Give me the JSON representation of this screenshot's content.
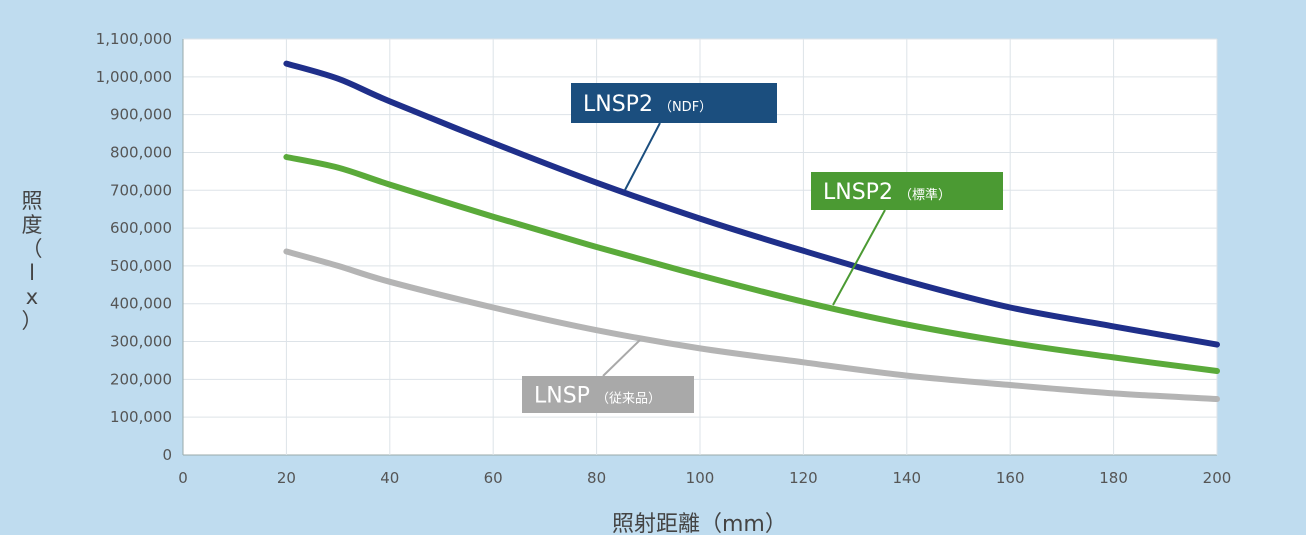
{
  "chart_data": {
    "type": "line",
    "xlabel": "照射距離（mm）",
    "ylabel": "照度（lx）",
    "xlim": [
      0,
      200
    ],
    "ylim": [
      0,
      1100000
    ],
    "x_ticks": [
      "0",
      "20",
      "40",
      "60",
      "80",
      "100",
      "120",
      "140",
      "160",
      "180",
      "200"
    ],
    "y_ticks": [
      "0",
      "100,000",
      "200,000",
      "300,000",
      "400,000",
      "500,000",
      "600,000",
      "700,000",
      "800,000",
      "900,000",
      "1,000,000",
      "1,100,000"
    ],
    "grid": true,
    "series": [
      {
        "name": "LNSP2（NDF）",
        "tag_main": "LNSP2",
        "tag_sub": "（NDF）",
        "color": "#1f2f8a",
        "label_color": "#1b4e7e",
        "x": [
          20,
          30,
          40,
          60,
          80,
          100,
          120,
          140,
          160,
          180,
          200
        ],
        "values": [
          1035000,
          995000,
          935000,
          825000,
          720000,
          625000,
          540000,
          460000,
          390000,
          340000,
          292000
        ]
      },
      {
        "name": "LNSP2（標準）",
        "tag_main": "LNSP2",
        "tag_sub": "（標準）",
        "color": "#5aaa3a",
        "label_color": "#4b9a33",
        "x": [
          20,
          30,
          40,
          60,
          80,
          100,
          120,
          140,
          160,
          180,
          200
        ],
        "values": [
          788000,
          760000,
          715000,
          630000,
          550000,
          475000,
          405000,
          345000,
          297000,
          258000,
          222000
        ]
      },
      {
        "name": "LNSP（従来品）",
        "tag_main": "LNSP",
        "tag_sub": "（従来品）",
        "color": "#b4b4b4",
        "label_color": "#a9a9a9",
        "x": [
          20,
          30,
          40,
          60,
          80,
          100,
          120,
          140,
          160,
          180,
          200
        ],
        "values": [
          538000,
          500000,
          458000,
          390000,
          330000,
          282000,
          245000,
          210000,
          185000,
          163000,
          148000
        ]
      }
    ]
  }
}
